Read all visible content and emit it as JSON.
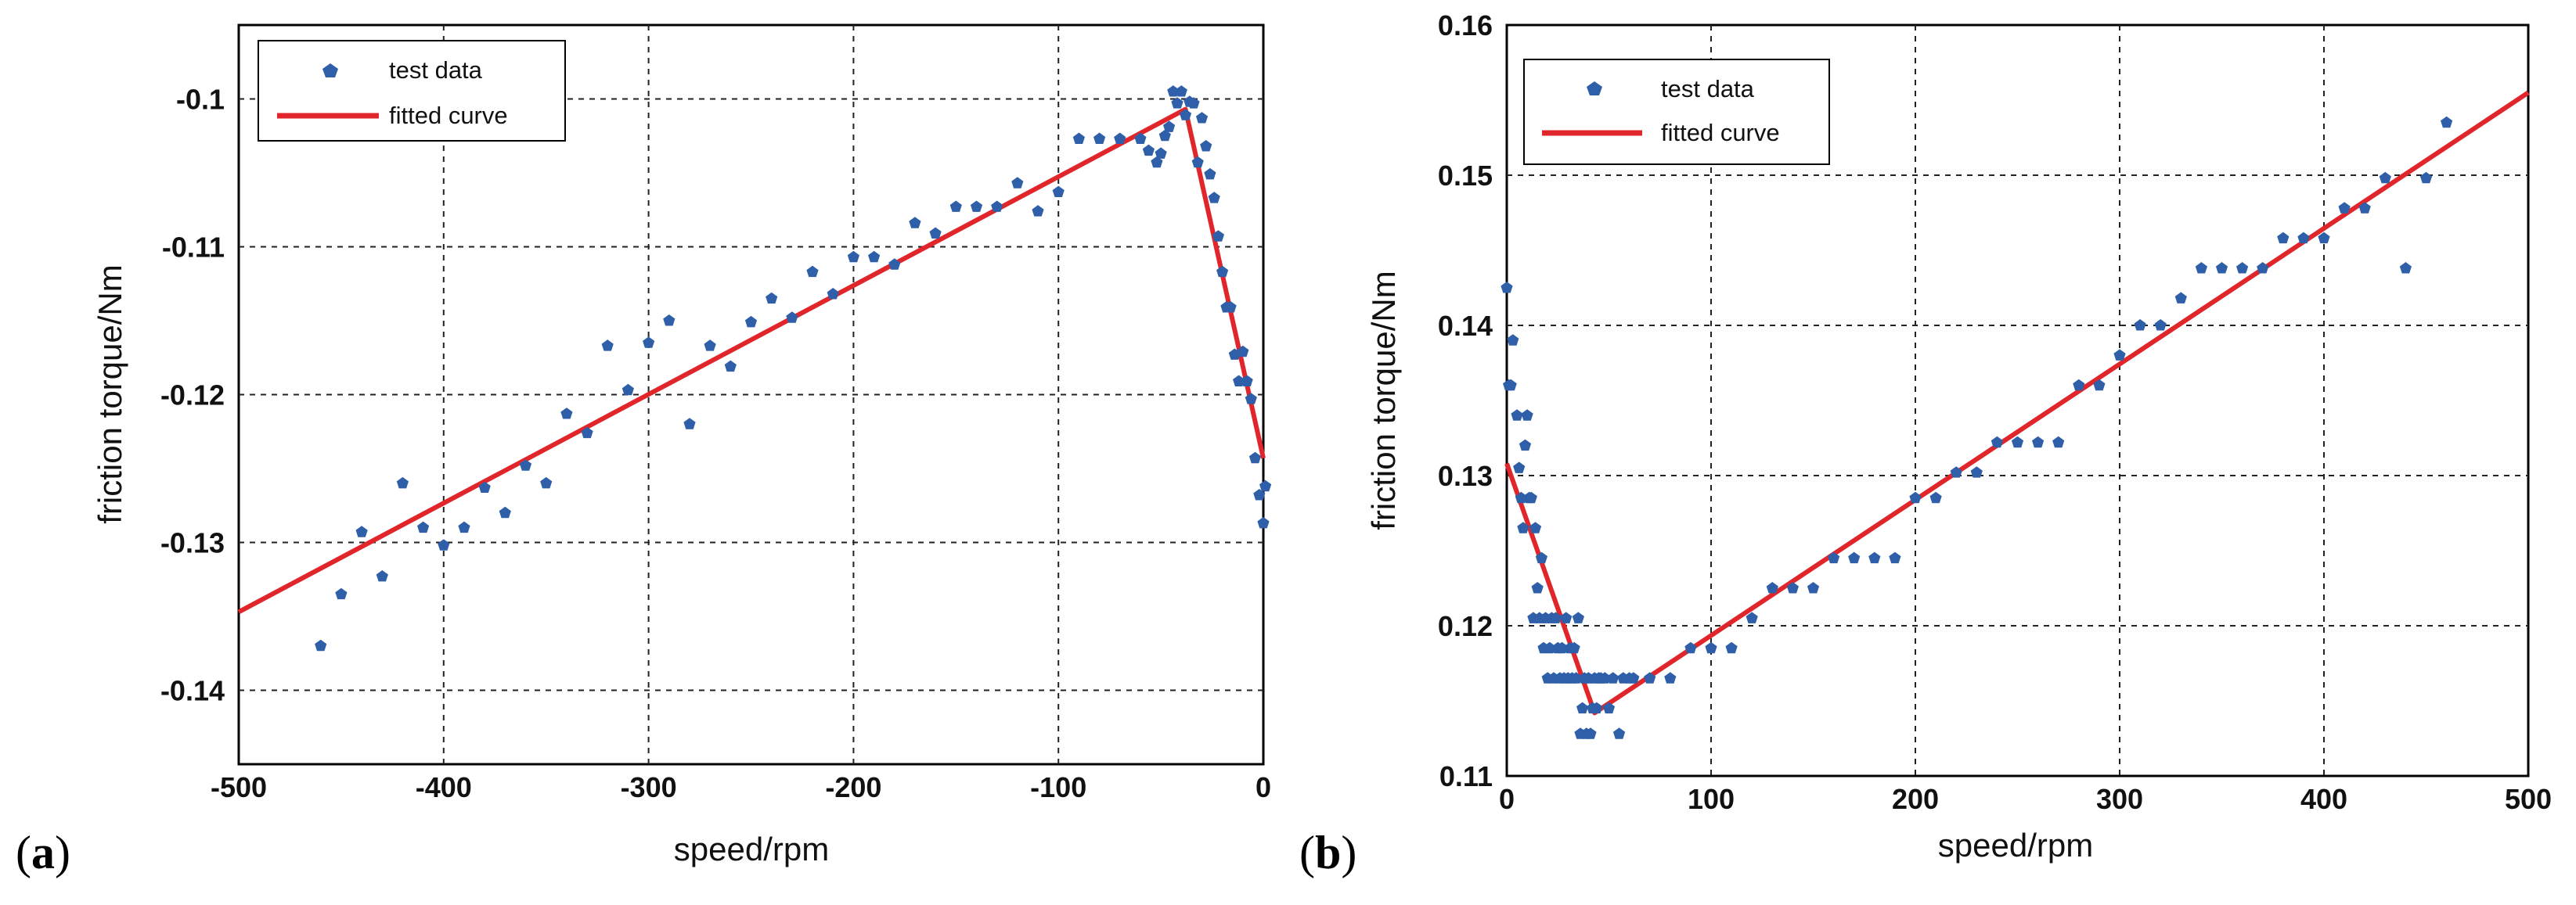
{
  "colors": {
    "marker": "#2e5fa8",
    "line": "#e0262b",
    "grid": "#222222",
    "axis": "#000000"
  },
  "chart_data": [
    {
      "type": "scatter",
      "panel": "(a)",
      "panel_parts": {
        "open": "(",
        "letter": "a",
        "close": ")"
      },
      "title": "",
      "xlabel": "speed/rpm",
      "ylabel": "friction torque/Nm",
      "xlim": [
        -500,
        0
      ],
      "ylim": [
        -0.145,
        -0.095
      ],
      "xticks": [
        -500,
        -400,
        -300,
        -200,
        -100,
        0
      ],
      "xtick_labels": [
        "-500",
        "-400",
        "-300",
        "-200",
        "-100",
        "0"
      ],
      "yticks": [
        -0.14,
        -0.13,
        -0.12,
        -0.11,
        -0.1
      ],
      "ytick_labels": [
        "-0.14",
        "-0.13",
        "-0.12",
        "-0.11",
        "-0.1"
      ],
      "grid": true,
      "legend_position": "top-left",
      "legend": [
        "test data",
        "fitted curve"
      ],
      "series": [
        {
          "name": "test data",
          "kind": "markers",
          "points": [
            [
              -460,
              -0.137
            ],
            [
              -450,
              -0.1335
            ],
            [
              -440,
              -0.1293
            ],
            [
              -430,
              -0.1323
            ],
            [
              -420,
              -0.126
            ],
            [
              -410,
              -0.129
            ],
            [
              -400,
              -0.1302
            ],
            [
              -390,
              -0.129
            ],
            [
              -380,
              -0.1263
            ],
            [
              -370,
              -0.128
            ],
            [
              -360,
              -0.1248
            ],
            [
              -350,
              -0.126
            ],
            [
              -340,
              -0.1213
            ],
            [
              -330,
              -0.1226
            ],
            [
              -320,
              -0.1167
            ],
            [
              -310,
              -0.1197
            ],
            [
              -300,
              -0.1165
            ],
            [
              -290,
              -0.115
            ],
            [
              -280,
              -0.122
            ],
            [
              -270,
              -0.1167
            ],
            [
              -260,
              -0.1181
            ],
            [
              -250,
              -0.1151
            ],
            [
              -240,
              -0.1135
            ],
            [
              -230,
              -0.1148
            ],
            [
              -220,
              -0.1117
            ],
            [
              -210,
              -0.1132
            ],
            [
              -200,
              -0.1107
            ],
            [
              -190,
              -0.1107
            ],
            [
              -180,
              -0.1112
            ],
            [
              -170,
              -0.1084
            ],
            [
              -160,
              -0.1091
            ],
            [
              -150,
              -0.1073
            ],
            [
              -140,
              -0.1073
            ],
            [
              -130,
              -0.1073
            ],
            [
              -120,
              -0.1057
            ],
            [
              -110,
              -0.1076
            ],
            [
              -100,
              -0.1063
            ],
            [
              -90,
              -0.1027
            ],
            [
              -80,
              -0.1027
            ],
            [
              -70,
              -0.1027
            ],
            [
              -60,
              -0.1027
            ],
            [
              -56,
              -0.1035
            ],
            [
              -52,
              -0.1043
            ],
            [
              -50,
              -0.1037
            ],
            [
              -48,
              -0.1025
            ],
            [
              -46,
              -0.1019
            ],
            [
              -44,
              -0.0995
            ],
            [
              -42,
              -0.1003
            ],
            [
              -40,
              -0.0995
            ],
            [
              -38,
              -0.1011
            ],
            [
              -36,
              -0.1002
            ],
            [
              -34,
              -0.1003
            ],
            [
              -32,
              -0.1043
            ],
            [
              -30,
              -0.1013
            ],
            [
              -28,
              -0.1032
            ],
            [
              -26,
              -0.1051
            ],
            [
              -24,
              -0.1067
            ],
            [
              -22,
              -0.1093
            ],
            [
              -20,
              -0.1117
            ],
            [
              -18,
              -0.1141
            ],
            [
              -16,
              -0.1141
            ],
            [
              -14,
              -0.1173
            ],
            [
              -12,
              -0.1191
            ],
            [
              -10,
              -0.1171
            ],
            [
              -8,
              -0.1191
            ],
            [
              -6,
              -0.1203
            ],
            [
              -4,
              -0.1243
            ],
            [
              -2,
              -0.1268
            ],
            [
              0,
              -0.1287
            ],
            [
              1,
              -0.1262
            ]
          ]
        },
        {
          "name": "fitted curve",
          "kind": "line",
          "points": [
            [
              -500,
              -0.1347
            ],
            [
              -38,
              -0.1007
            ],
            [
              0,
              -0.1243
            ]
          ]
        }
      ]
    },
    {
      "type": "scatter",
      "panel": "(b)",
      "panel_parts": {
        "open": "(",
        "letter": "b",
        "close": ")"
      },
      "title": "",
      "xlabel": "speed/rpm",
      "ylabel": "friction torque/Nm",
      "xlim": [
        0,
        500
      ],
      "ylim": [
        0.11,
        0.16
      ],
      "xticks": [
        0,
        100,
        200,
        300,
        400,
        500
      ],
      "xtick_labels": [
        "0",
        "100",
        "200",
        "300",
        "400",
        "500"
      ],
      "yticks": [
        0.11,
        0.12,
        0.13,
        0.14,
        0.15,
        0.16
      ],
      "ytick_labels": [
        "0.11",
        "0.12",
        "0.13",
        "0.14",
        "0.15",
        "0.16"
      ],
      "grid": true,
      "legend_position": "top-left",
      "legend": [
        "test data",
        "fitted curve"
      ],
      "series": [
        {
          "name": "test data",
          "kind": "markers",
          "points": [
            [
              0,
              0.1425
            ],
            [
              1,
              0.136
            ],
            [
              2,
              0.136
            ],
            [
              3,
              0.139
            ],
            [
              5,
              0.134
            ],
            [
              6,
              0.1305
            ],
            [
              7,
              0.1285
            ],
            [
              8,
              0.1265
            ],
            [
              9,
              0.132
            ],
            [
              10,
              0.134
            ],
            [
              11,
              0.1285
            ],
            [
              12,
              0.1285
            ],
            [
              13,
              0.1205
            ],
            [
              14,
              0.1265
            ],
            [
              15,
              0.1225
            ],
            [
              16,
              0.1205
            ],
            [
              17,
              0.1245
            ],
            [
              18,
              0.1185
            ],
            [
              19,
              0.1205
            ],
            [
              20,
              0.1165
            ],
            [
              21,
              0.1185
            ],
            [
              22,
              0.1205
            ],
            [
              23,
              0.1165
            ],
            [
              24,
              0.1205
            ],
            [
              25,
              0.1185
            ],
            [
              26,
              0.1165
            ],
            [
              27,
              0.1185
            ],
            [
              28,
              0.1165
            ],
            [
              29,
              0.1205
            ],
            [
              30,
              0.1165
            ],
            [
              31,
              0.1185
            ],
            [
              32,
              0.1165
            ],
            [
              33,
              0.1185
            ],
            [
              34,
              0.1165
            ],
            [
              35,
              0.1205
            ],
            [
              36,
              0.1128
            ],
            [
              37,
              0.1145
            ],
            [
              38,
              0.1165
            ],
            [
              39,
              0.1128
            ],
            [
              40,
              0.1165
            ],
            [
              41,
              0.1128
            ],
            [
              42,
              0.1145
            ],
            [
              43,
              0.1165
            ],
            [
              44,
              0.1145
            ],
            [
              45,
              0.1165
            ],
            [
              46,
              0.1165
            ],
            [
              48,
              0.1165
            ],
            [
              50,
              0.1145
            ],
            [
              52,
              0.1165
            ],
            [
              55,
              0.1128
            ],
            [
              57,
              0.1165
            ],
            [
              60,
              0.1165
            ],
            [
              62,
              0.1165
            ],
            [
              70,
              0.1165
            ],
            [
              80,
              0.1165
            ],
            [
              90,
              0.1185
            ],
            [
              100,
              0.1185
            ],
            [
              110,
              0.1185
            ],
            [
              120,
              0.1205
            ],
            [
              130,
              0.1225
            ],
            [
              140,
              0.1225
            ],
            [
              150,
              0.1225
            ],
            [
              160,
              0.1245
            ],
            [
              170,
              0.1245
            ],
            [
              180,
              0.1245
            ],
            [
              190,
              0.1245
            ],
            [
              200,
              0.1285
            ],
            [
              210,
              0.1285
            ],
            [
              220,
              0.1302
            ],
            [
              230,
              0.1302
            ],
            [
              240,
              0.1322
            ],
            [
              250,
              0.1322
            ],
            [
              260,
              0.1322
            ],
            [
              270,
              0.1322
            ],
            [
              280,
              0.136
            ],
            [
              290,
              0.136
            ],
            [
              300,
              0.138
            ],
            [
              310,
              0.14
            ],
            [
              320,
              0.14
            ],
            [
              330,
              0.1418
            ],
            [
              340,
              0.1438
            ],
            [
              350,
              0.1438
            ],
            [
              360,
              0.1438
            ],
            [
              370,
              0.1438
            ],
            [
              380,
              0.1458
            ],
            [
              390,
              0.1458
            ],
            [
              400,
              0.1458
            ],
            [
              410,
              0.1478
            ],
            [
              420,
              0.1478
            ],
            [
              430,
              0.1498
            ],
            [
              440,
              0.1438
            ],
            [
              450,
              0.1498
            ],
            [
              460,
              0.1535
            ]
          ]
        },
        {
          "name": "fitted curve",
          "kind": "line",
          "points": [
            [
              0,
              0.1308
            ],
            [
              43,
              0.1142
            ],
            [
              500,
              0.1555
            ]
          ]
        }
      ]
    }
  ]
}
